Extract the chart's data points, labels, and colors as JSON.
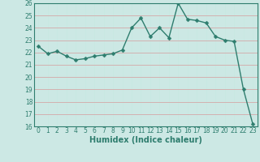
{
  "x": [
    0,
    1,
    2,
    3,
    4,
    5,
    6,
    7,
    8,
    9,
    10,
    11,
    12,
    13,
    14,
    15,
    16,
    17,
    18,
    19,
    20,
    21,
    22,
    23
  ],
  "y": [
    22.5,
    21.9,
    22.1,
    21.7,
    21.4,
    21.5,
    21.7,
    21.8,
    21.9,
    22.2,
    24.0,
    24.8,
    23.3,
    24.0,
    23.2,
    26.0,
    24.7,
    24.6,
    24.4,
    23.3,
    23.0,
    22.9,
    19.0,
    16.2
  ],
  "line_color": "#2e7d6e",
  "marker": "D",
  "marker_size": 2.5,
  "bg_color": "#cce8e4",
  "grid_color_major": "#d4a0a0",
  "grid_color_minor": "#ffffff",
  "tick_color": "#2e7d6e",
  "label_color": "#2e7d6e",
  "xlabel": "Humidex (Indice chaleur)",
  "ylim": [
    16,
    26
  ],
  "xlim": [
    -0.5,
    23.5
  ],
  "yticks": [
    16,
    17,
    18,
    19,
    20,
    21,
    22,
    23,
    24,
    25,
    26
  ],
  "xticks": [
    0,
    1,
    2,
    3,
    4,
    5,
    6,
    7,
    8,
    9,
    10,
    11,
    12,
    13,
    14,
    15,
    16,
    17,
    18,
    19,
    20,
    21,
    22,
    23
  ],
  "tick_fontsize": 5.5,
  "label_fontsize": 7.0
}
